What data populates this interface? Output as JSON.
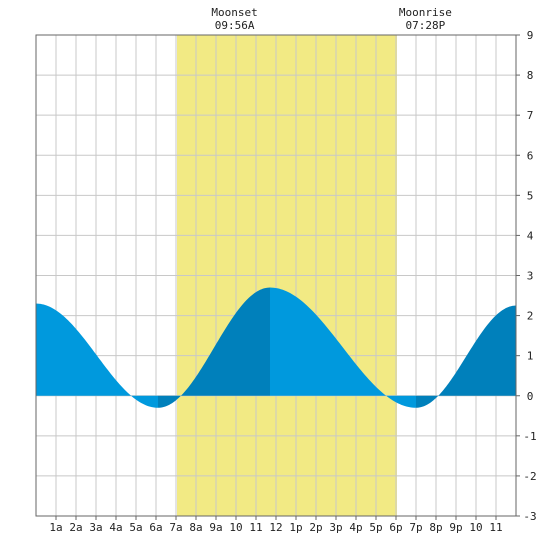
{
  "chart_data": {
    "type": "area",
    "x_unit": "hour",
    "xlim": [
      0,
      24
    ],
    "ylim": [
      -3,
      9
    ],
    "grid": true,
    "x_tick_labels": [
      {
        "hour": 1,
        "label": "1a"
      },
      {
        "hour": 2,
        "label": "2a"
      },
      {
        "hour": 3,
        "label": "3a"
      },
      {
        "hour": 4,
        "label": "4a"
      },
      {
        "hour": 5,
        "label": "5a"
      },
      {
        "hour": 6,
        "label": "6a"
      },
      {
        "hour": 7,
        "label": "7a"
      },
      {
        "hour": 8,
        "label": "8a"
      },
      {
        "hour": 9,
        "label": "9a"
      },
      {
        "hour": 10,
        "label": "10"
      },
      {
        "hour": 11,
        "label": "11"
      },
      {
        "hour": 12,
        "label": "12"
      },
      {
        "hour": 13,
        "label": "1p"
      },
      {
        "hour": 14,
        "label": "2p"
      },
      {
        "hour": 15,
        "label": "3p"
      },
      {
        "hour": 16,
        "label": "4p"
      },
      {
        "hour": 17,
        "label": "5p"
      },
      {
        "hour": 18,
        "label": "6p"
      },
      {
        "hour": 19,
        "label": "7p"
      },
      {
        "hour": 20,
        "label": "8p"
      },
      {
        "hour": 21,
        "label": "9p"
      },
      {
        "hour": 22,
        "label": "10"
      },
      {
        "hour": 23,
        "label": "11"
      }
    ],
    "y_ticks": [
      9,
      8,
      7,
      6,
      5,
      4,
      3,
      2,
      1,
      0,
      -1,
      -2,
      -3
    ],
    "daylight": {
      "start": 7.05,
      "end": 18.05,
      "color": "#f2ea84"
    },
    "moon_events": [
      {
        "title": "Moonset",
        "time": "09:56A",
        "hour": 9.93
      },
      {
        "title": "Moonrise",
        "time": "07:28P",
        "hour": 19.47
      }
    ],
    "tide_extrema": [
      {
        "hour": 0.0,
        "level": 2.3
      },
      {
        "hour": 6.1,
        "level": -0.3
      },
      {
        "hour": 11.7,
        "level": 2.7
      },
      {
        "hour": 19.0,
        "level": -0.3
      },
      {
        "hour": 24.0,
        "level": 2.25
      }
    ],
    "colors": {
      "fall": "#0099dd",
      "rise": "#0080bb",
      "grid": "#c8c8c8",
      "frame": "#666666",
      "background": "#ffffff"
    }
  }
}
